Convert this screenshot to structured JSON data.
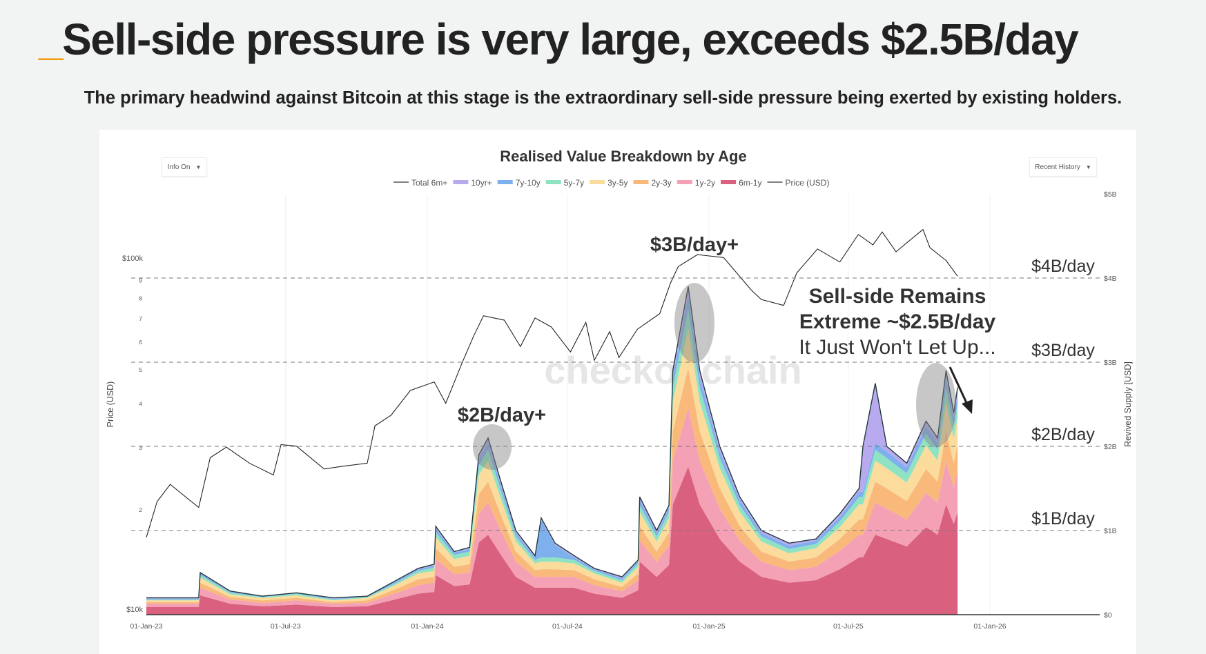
{
  "header": {
    "title_prefix": "_",
    "title": "Sell-side pressure is very large, exceeds $2.5B/day",
    "subtitle": "The primary headwind against Bitcoin at this stage is the extraordinary sell-side pressure being exerted by existing holders."
  },
  "controls": {
    "info_label": "Info On",
    "history_label": "Recent History",
    "caret": "▼"
  },
  "chart_data": {
    "type": "area",
    "title": "Realised Value Breakdown by Age",
    "watermark": "checkonchain",
    "legend": [
      {
        "name": "Total 6m+",
        "color": "#555555",
        "kind": "line"
      },
      {
        "name": "10yr+",
        "color": "#b9aaf0",
        "kind": "area"
      },
      {
        "name": "7y-10y",
        "color": "#7fb0ee",
        "kind": "area"
      },
      {
        "name": "5y-7y",
        "color": "#8fe3c2",
        "kind": "area"
      },
      {
        "name": "3y-5y",
        "color": "#fbdc9c",
        "kind": "area"
      },
      {
        "name": "2y-3y",
        "color": "#f8b97b",
        "kind": "area"
      },
      {
        "name": "1y-2y",
        "color": "#f4a1b6",
        "kind": "area"
      },
      {
        "name": "6m-1y",
        "color": "#d9617f",
        "kind": "area"
      },
      {
        "name": "Price (USD)",
        "color": "#555555",
        "kind": "line"
      }
    ],
    "legend_position": "top-center",
    "left_axis": {
      "label": "Price (USD)",
      "scale": "log",
      "range": [
        10000,
        100000
      ],
      "ticks": [
        "$10k",
        "2",
        "3",
        "4",
        "5",
        "6",
        "7",
        "8",
        "9",
        "$100k"
      ]
    },
    "right_axis": {
      "label": "Revived Supply [USD]",
      "range": [
        0,
        5000000000
      ],
      "ticks": [
        "$0",
        "$1B",
        "$2B",
        "$3B",
        "$4B",
        "$5B"
      ]
    },
    "x_axis": {
      "range": [
        "2023-01-01",
        "2026-02-28"
      ],
      "ticks": [
        "01-Jan-23",
        "01-Jul-23",
        "01-Jan-24",
        "01-Jul-24",
        "01-Jan-25",
        "01-Jul-25",
        "01-Jan-26"
      ]
    },
    "reference_lines": [
      {
        "value_b": 1,
        "label": "$1B/day"
      },
      {
        "value_b": 2,
        "label": "$2B/day"
      },
      {
        "value_b": 3,
        "label": "$3B/day"
      },
      {
        "value_b": 4,
        "label": "$4B/day"
      }
    ],
    "annotations": {
      "peak_2024_mar": "$2B/day+",
      "peak_2024_dec": "$3B/day+",
      "recent_line1": "Sell-side Remains",
      "recent_line2": "Extreme ~$2.5B/day",
      "recent_line3": "It Just Won't Let Up..."
    },
    "price": {
      "dates": [
        "2023-01-01",
        "2023-01-15",
        "2023-02-01",
        "2023-03-10",
        "2023-03-25",
        "2023-04-15",
        "2023-05-15",
        "2023-06-15",
        "2023-06-25",
        "2023-07-15",
        "2023-08-20",
        "2023-09-15",
        "2023-10-15",
        "2023-10-25",
        "2023-11-15",
        "2023-12-10",
        "2024-01-10",
        "2024-01-25",
        "2024-02-15",
        "2024-03-01",
        "2024-03-14",
        "2024-04-10",
        "2024-05-01",
        "2024-05-20",
        "2024-06-10",
        "2024-07-05",
        "2024-07-25",
        "2024-08-05",
        "2024-08-25",
        "2024-09-06",
        "2024-09-30",
        "2024-10-29",
        "2024-11-12",
        "2024-11-22",
        "2024-12-17",
        "2025-01-20",
        "2025-02-25",
        "2025-03-10",
        "2025-04-08",
        "2025-04-25",
        "2025-05-22",
        "2025-06-20",
        "2025-07-14",
        "2025-08-02",
        "2025-08-14",
        "2025-09-01",
        "2025-09-20",
        "2025-10-06",
        "2025-10-15",
        "2025-11-05",
        "2025-11-20"
      ],
      "values": [
        16600,
        21000,
        23500,
        20200,
        28000,
        30000,
        27000,
        25000,
        30500,
        30200,
        26000,
        26500,
        27000,
        34500,
        37000,
        43500,
        46000,
        40000,
        52000,
        62000,
        71000,
        69000,
        58000,
        70000,
        66000,
        56000,
        68000,
        53000,
        64000,
        54000,
        65000,
        72000,
        88000,
        98000,
        106000,
        104000,
        84000,
        79000,
        76000,
        94000,
        110000,
        101000,
        121000,
        113000,
        123000,
        108000,
        117000,
        125000,
        111000,
        102000,
        92000
      ]
    },
    "revived_supply_b": {
      "dates": [
        "2023-01-01",
        "2023-03-10",
        "2023-03-12",
        "2023-04-20",
        "2023-06-01",
        "2023-07-15",
        "2023-09-01",
        "2023-10-15",
        "2023-11-20",
        "2023-12-20",
        "2024-01-10",
        "2024-01-12",
        "2024-02-05",
        "2024-02-25",
        "2024-03-08",
        "2024-03-20",
        "2024-04-05",
        "2024-04-25",
        "2024-05-20",
        "2024-05-28",
        "2024-06-15",
        "2024-07-10",
        "2024-08-05",
        "2024-09-10",
        "2024-10-01",
        "2024-10-03",
        "2024-10-25",
        "2024-11-10",
        "2024-11-15",
        "2024-12-05",
        "2024-12-20",
        "2025-01-15",
        "2025-02-10",
        "2025-03-10",
        "2025-04-15",
        "2025-05-20",
        "2025-06-20",
        "2025-07-15",
        "2025-07-20",
        "2025-08-05",
        "2025-08-20",
        "2025-09-15",
        "2025-10-10",
        "2025-10-25",
        "2025-11-05",
        "2025-11-15",
        "2025-11-20"
      ],
      "series": [
        {
          "name": "6m-1y",
          "values": [
            0.09,
            0.09,
            0.23,
            0.13,
            0.1,
            0.12,
            0.09,
            0.1,
            0.18,
            0.25,
            0.27,
            0.47,
            0.34,
            0.36,
            0.86,
            0.95,
            0.72,
            0.45,
            0.32,
            0.32,
            0.32,
            0.32,
            0.25,
            0.2,
            0.29,
            0.63,
            0.45,
            0.59,
            1.31,
            1.76,
            1.31,
            0.9,
            0.63,
            0.45,
            0.38,
            0.41,
            0.54,
            0.68,
            0.68,
            0.95,
            0.9,
            0.81,
            1.04,
            0.95,
            1.31,
            1.08,
            1.22
          ]
        },
        {
          "name": "1y-2y",
          "values": [
            0.04,
            0.04,
            0.09,
            0.05,
            0.04,
            0.05,
            0.04,
            0.04,
            0.07,
            0.1,
            0.11,
            0.19,
            0.14,
            0.14,
            0.34,
            0.38,
            0.29,
            0.18,
            0.13,
            0.13,
            0.13,
            0.13,
            0.1,
            0.08,
            0.12,
            0.25,
            0.18,
            0.23,
            0.52,
            0.7,
            0.52,
            0.36,
            0.25,
            0.18,
            0.15,
            0.16,
            0.22,
            0.27,
            0.27,
            0.38,
            0.36,
            0.32,
            0.41,
            0.38,
            0.52,
            0.43,
            0.49
          ]
        },
        {
          "name": "2y-3y",
          "values": [
            0.02,
            0.02,
            0.06,
            0.03,
            0.03,
            0.03,
            0.02,
            0.03,
            0.05,
            0.07,
            0.07,
            0.13,
            0.09,
            0.1,
            0.23,
            0.25,
            0.19,
            0.12,
            0.08,
            0.09,
            0.09,
            0.08,
            0.07,
            0.05,
            0.08,
            0.17,
            0.12,
            0.16,
            0.35,
            0.47,
            0.35,
            0.24,
            0.17,
            0.12,
            0.1,
            0.11,
            0.14,
            0.18,
            0.18,
            0.25,
            0.24,
            0.22,
            0.28,
            0.25,
            0.35,
            0.29,
            0.32
          ]
        },
        {
          "name": "3y-5y",
          "values": [
            0.02,
            0.02,
            0.06,
            0.03,
            0.03,
            0.03,
            0.02,
            0.03,
            0.05,
            0.07,
            0.07,
            0.13,
            0.09,
            0.1,
            0.23,
            0.25,
            0.19,
            0.12,
            0.08,
            0.09,
            0.09,
            0.08,
            0.07,
            0.05,
            0.08,
            0.17,
            0.12,
            0.16,
            0.35,
            0.47,
            0.35,
            0.24,
            0.17,
            0.12,
            0.1,
            0.11,
            0.14,
            0.18,
            0.18,
            0.25,
            0.24,
            0.22,
            0.28,
            0.25,
            0.35,
            0.29,
            0.32
          ]
        },
        {
          "name": "5y-7y",
          "values": [
            0.01,
            0.01,
            0.03,
            0.02,
            0.01,
            0.02,
            0.01,
            0.01,
            0.02,
            0.03,
            0.04,
            0.06,
            0.05,
            0.05,
            0.11,
            0.13,
            0.1,
            0.06,
            0.04,
            0.05,
            0.05,
            0.04,
            0.03,
            0.03,
            0.04,
            0.08,
            0.06,
            0.08,
            0.17,
            0.23,
            0.17,
            0.12,
            0.08,
            0.06,
            0.05,
            0.05,
            0.07,
            0.09,
            0.09,
            0.13,
            0.12,
            0.11,
            0.14,
            0.13,
            0.17,
            0.14,
            0.16
          ]
        },
        {
          "name": "7y-10y",
          "values": [
            0.01,
            0.01,
            0.02,
            0.01,
            0.01,
            0.01,
            0.01,
            0.01,
            0.02,
            0.02,
            0.02,
            0.04,
            0.03,
            0.03,
            0.08,
            0.08,
            0.06,
            0.04,
            0.03,
            0.45,
            0.15,
            0.03,
            0.02,
            0.02,
            0.03,
            0.06,
            0.04,
            0.05,
            0.12,
            0.16,
            0.12,
            0.08,
            0.06,
            0.04,
            0.04,
            0.04,
            0.05,
            0.06,
            0.06,
            0.08,
            0.08,
            0.07,
            0.09,
            0.08,
            0.12,
            0.1,
            0.11
          ]
        },
        {
          "name": "10yr+",
          "values": [
            0.01,
            0.01,
            0.01,
            0.01,
            0.0,
            0.0,
            0.01,
            0.0,
            0.01,
            0.01,
            0.02,
            0.03,
            0.01,
            0.02,
            0.05,
            0.06,
            0.05,
            0.03,
            0.02,
            0.02,
            0.02,
            0.02,
            0.01,
            0.02,
            0.01,
            0.04,
            0.03,
            0.03,
            0.08,
            0.11,
            0.08,
            0.06,
            0.04,
            0.03,
            0.03,
            0.02,
            0.04,
            0.04,
            0.54,
            0.71,
            0.06,
            0.05,
            0.06,
            0.06,
            0.08,
            0.07,
            0.08
          ]
        }
      ]
    }
  }
}
